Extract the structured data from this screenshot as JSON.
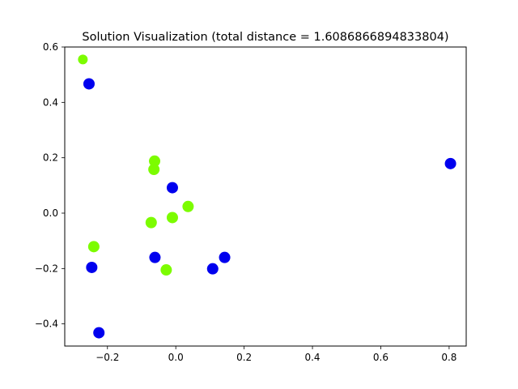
{
  "chart_data": {
    "type": "scatter",
    "title": "Solution Visualization (total distance = 1.6086866894833804)",
    "xlabel": "",
    "ylabel": "",
    "xlim": [
      -0.325,
      0.85
    ],
    "ylim": [
      -0.48,
      0.6
    ],
    "xticks": [
      -0.2,
      0.0,
      0.2,
      0.4,
      0.6,
      0.8
    ],
    "xtick_labels": [
      "−0.2",
      "0.0",
      "0.2",
      "0.4",
      "0.6",
      "0.8"
    ],
    "yticks": [
      -0.4,
      -0.2,
      0.0,
      0.2,
      0.4,
      0.6
    ],
    "ytick_labels": [
      "−0.4",
      "−0.2",
      "0.0",
      "0.2",
      "0.4",
      "0.6"
    ],
    "grid": false,
    "series": [
      {
        "color": "#7cfc00",
        "points": [
          {
            "x": -0.272,
            "y": 0.555
          },
          {
            "x": -0.062,
            "y": 0.188
          },
          {
            "x": -0.064,
            "y": 0.158
          },
          {
            "x": 0.036,
            "y": 0.024
          },
          {
            "x": -0.01,
            "y": -0.016
          },
          {
            "x": -0.072,
            "y": -0.034
          },
          {
            "x": -0.24,
            "y": -0.121
          },
          {
            "x": -0.028,
            "y": -0.205
          }
        ]
      },
      {
        "color": "#0000ee",
        "points": [
          {
            "x": -0.254,
            "y": 0.467
          },
          {
            "x": 0.804,
            "y": 0.179
          },
          {
            "x": -0.01,
            "y": 0.092
          },
          {
            "x": -0.061,
            "y": -0.16
          },
          {
            "x": 0.143,
            "y": -0.16
          },
          {
            "x": 0.108,
            "y": -0.201
          },
          {
            "x": -0.246,
            "y": -0.196
          },
          {
            "x": -0.225,
            "y": -0.432
          }
        ]
      }
    ]
  }
}
